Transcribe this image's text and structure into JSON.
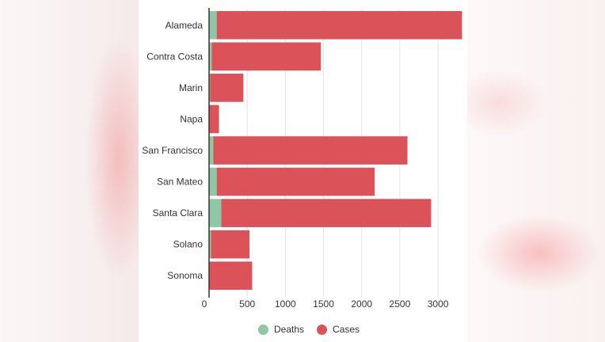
{
  "chart_data": {
    "type": "bar",
    "orientation": "horizontal",
    "stacked": true,
    "categories": [
      "Alameda",
      "Contra Costa",
      "Marin",
      "Napa",
      "San Francisco",
      "San Mateo",
      "Santa Clara",
      "Solano",
      "Sonoma"
    ],
    "series": [
      {
        "name": "Deaths",
        "color": "#8ec8a5",
        "values": [
          100,
          35,
          15,
          5,
          55,
          100,
          160,
          25,
          5
        ]
      },
      {
        "name": "Cases",
        "color": "#db5258",
        "values": [
          3215,
          1430,
          435,
          125,
          2545,
          2070,
          2750,
          505,
          560
        ]
      }
    ],
    "xlim": [
      0,
      3300
    ],
    "xticks": [
      0,
      500,
      1000,
      1500,
      2000,
      2500,
      3000
    ],
    "xtick_labels": [
      "0",
      "500",
      "1000",
      "1500",
      "2000",
      "2500",
      "3000"
    ],
    "grid": true,
    "legend_position": "bottom"
  }
}
